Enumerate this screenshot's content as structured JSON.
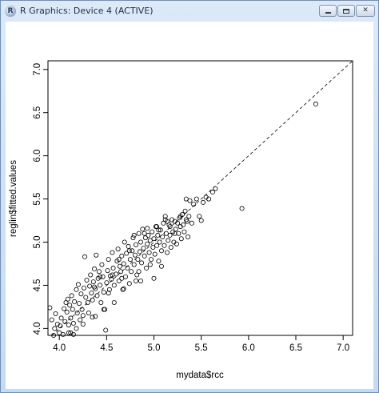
{
  "window": {
    "title": "R Graphics: Device 4 (ACTIVE)",
    "app_icon_letter": "R"
  },
  "chart_data": {
    "type": "scatter",
    "title": "",
    "xlabel": "mydata$rcc",
    "ylabel": "reglin$fitted.values",
    "xlim": [
      3.88,
      7.1
    ],
    "ylim": [
      3.92,
      7.1
    ],
    "x_ticks": [
      "4.0",
      "4.5",
      "5.0",
      "5.5",
      "6.0",
      "6.5",
      "7.0"
    ],
    "y_ticks": [
      "4.0",
      "4.5",
      "5.0",
      "5.5",
      "6.0",
      "6.5",
      "7.0"
    ],
    "grid": false,
    "reference_line": {
      "type": "abline",
      "slope": 1,
      "intercept": 0,
      "style": "dashed"
    },
    "points": [
      [
        3.9,
        4.24
      ],
      [
        3.92,
        4.1
      ],
      [
        3.94,
        3.92
      ],
      [
        3.95,
        4.0
      ],
      [
        3.96,
        4.17
      ],
      [
        3.98,
        4.05
      ],
      [
        4.0,
        3.95
      ],
      [
        4.01,
        4.03
      ],
      [
        4.02,
        4.12
      ],
      [
        4.04,
        3.93
      ],
      [
        4.05,
        4.23
      ],
      [
        4.06,
        4.08
      ],
      [
        4.07,
        4.3
      ],
      [
        4.08,
        4.19
      ],
      [
        4.09,
        4.34
      ],
      [
        4.1,
        4.04
      ],
      [
        4.1,
        3.95
      ],
      [
        4.11,
        4.27
      ],
      [
        4.12,
        4.12
      ],
      [
        4.13,
        4.38
      ],
      [
        4.14,
        4.22
      ],
      [
        4.15,
        4.06
      ],
      [
        4.15,
        3.93
      ],
      [
        4.16,
        4.31
      ],
      [
        4.18,
        4.45
      ],
      [
        4.19,
        4.18
      ],
      [
        4.2,
        4.51
      ],
      [
        4.21,
        4.29
      ],
      [
        4.22,
        4.1
      ],
      [
        4.23,
        4.4
      ],
      [
        4.24,
        4.22
      ],
      [
        4.25,
        4.15
      ],
      [
        4.26,
        4.47
      ],
      [
        4.27,
        4.83
      ],
      [
        4.28,
        4.36
      ],
      [
        4.29,
        4.56
      ],
      [
        4.3,
        4.3
      ],
      [
        4.31,
        4.18
      ],
      [
        4.32,
        4.49
      ],
      [
        4.33,
        4.62
      ],
      [
        4.34,
        4.41
      ],
      [
        4.35,
        4.33
      ],
      [
        4.36,
        4.54
      ],
      [
        4.37,
        4.69
      ],
      [
        4.38,
        4.46
      ],
      [
        4.38,
        4.14
      ],
      [
        4.39,
        4.85
      ],
      [
        4.4,
        4.38
      ],
      [
        4.41,
        4.58
      ],
      [
        4.42,
        4.66
      ],
      [
        4.43,
        4.5
      ],
      [
        4.44,
        4.3
      ],
      [
        4.45,
        4.74
      ],
      [
        4.46,
        4.6
      ],
      [
        4.47,
        4.42
      ],
      [
        4.48,
        4.22
      ],
      [
        4.49,
        3.98
      ],
      [
        4.5,
        4.53
      ],
      [
        4.51,
        4.67
      ],
      [
        4.52,
        4.8
      ],
      [
        4.53,
        4.45
      ],
      [
        4.54,
        4.61
      ],
      [
        4.55,
        4.57
      ],
      [
        4.56,
        4.88
      ],
      [
        4.57,
        4.7
      ],
      [
        4.58,
        4.5
      ],
      [
        4.6,
        4.63
      ],
      [
        4.61,
        4.78
      ],
      [
        4.62,
        4.92
      ],
      [
        4.63,
        4.55
      ],
      [
        4.64,
        4.72
      ],
      [
        4.65,
        4.66
      ],
      [
        4.66,
        4.84
      ],
      [
        4.67,
        4.45
      ],
      [
        4.68,
        4.75
      ],
      [
        4.69,
        5.0
      ],
      [
        4.7,
        4.6
      ],
      [
        4.71,
        4.87
      ],
      [
        4.72,
        4.7
      ],
      [
        4.73,
        4.95
      ],
      [
        4.74,
        4.52
      ],
      [
        4.75,
        4.8
      ],
      [
        4.76,
        4.66
      ],
      [
        4.77,
        4.9
      ],
      [
        4.78,
        5.05
      ],
      [
        4.79,
        4.74
      ],
      [
        4.8,
        4.85
      ],
      [
        4.81,
        4.97
      ],
      [
        4.82,
        4.62
      ],
      [
        4.83,
        4.8
      ],
      [
        4.84,
        5.1
      ],
      [
        4.85,
        4.89
      ],
      [
        4.86,
        4.55
      ],
      [
        4.86,
        5.0
      ],
      [
        4.87,
        4.76
      ],
      [
        4.88,
        5.15
      ],
      [
        4.89,
        4.93
      ],
      [
        4.9,
        4.84
      ],
      [
        4.91,
        5.05
      ],
      [
        4.92,
        4.7
      ],
      [
        4.93,
        4.98
      ],
      [
        4.94,
        5.08
      ],
      [
        4.95,
        4.88
      ],
      [
        4.96,
        5.02
      ],
      [
        4.97,
        4.8
      ],
      [
        4.98,
        5.12
      ],
      [
        4.99,
        4.94
      ],
      [
        5.0,
        4.58
      ],
      [
        5.0,
        5.04
      ],
      [
        5.01,
        4.86
      ],
      [
        5.02,
        5.18
      ],
      [
        5.03,
        4.96
      ],
      [
        5.04,
        5.08
      ],
      [
        5.05,
        4.78
      ],
      [
        5.06,
        5.0
      ],
      [
        5.07,
        5.14
      ],
      [
        5.08,
        4.9
      ],
      [
        5.09,
        5.06
      ],
      [
        5.1,
        5.22
      ],
      [
        5.11,
        4.96
      ],
      [
        5.12,
        5.3
      ],
      [
        5.13,
        5.1
      ],
      [
        5.14,
        4.88
      ],
      [
        5.15,
        5.02
      ],
      [
        5.16,
        5.2
      ],
      [
        5.17,
        5.08
      ],
      [
        5.18,
        4.94
      ],
      [
        5.19,
        5.26
      ],
      [
        5.2,
        5.12
      ],
      [
        5.21,
        5.0
      ],
      [
        5.22,
        5.24
      ],
      [
        5.23,
        5.15
      ],
      [
        5.24,
        4.98
      ],
      [
        5.25,
        5.22
      ],
      [
        5.26,
        5.1
      ],
      [
        5.27,
        5.28
      ],
      [
        5.28,
        5.18
      ],
      [
        5.29,
        5.04
      ],
      [
        5.3,
        5.32
      ],
      [
        5.31,
        5.2
      ],
      [
        5.32,
        5.12
      ],
      [
        5.33,
        5.36
      ],
      [
        5.34,
        5.5
      ],
      [
        5.35,
        5.24
      ],
      [
        5.36,
        5.06
      ],
      [
        5.37,
        5.3
      ],
      [
        5.38,
        5.48
      ],
      [
        5.4,
        5.22
      ],
      [
        5.42,
        5.44
      ],
      [
        5.45,
        5.5
      ],
      [
        5.48,
        5.3
      ],
      [
        5.5,
        5.25
      ],
      [
        5.52,
        5.46
      ],
      [
        5.55,
        5.52
      ],
      [
        5.58,
        5.5
      ],
      [
        5.62,
        5.58
      ],
      [
        5.65,
        5.62
      ],
      [
        5.93,
        5.39
      ],
      [
        6.71,
        6.6
      ],
      [
        4.43,
        4.6
      ],
      [
        4.56,
        4.62
      ],
      [
        4.66,
        4.58
      ],
      [
        4.74,
        4.9
      ],
      [
        4.84,
        4.66
      ],
      [
        4.9,
        5.1
      ],
      [
        5.03,
        5.18
      ],
      [
        5.14,
        5.24
      ],
      [
        5.17,
        5.18
      ],
      [
        5.22,
        5.1
      ],
      [
        5.08,
        4.72
      ],
      [
        4.96,
        4.74
      ],
      [
        4.81,
        4.55
      ],
      [
        4.68,
        4.46
      ],
      [
        4.58,
        4.3
      ],
      [
        4.47,
        4.22
      ],
      [
        4.35,
        4.13
      ],
      [
        4.25,
        4.05
      ],
      [
        4.18,
        4.0
      ],
      [
        4.12,
        3.95
      ],
      [
        4.37,
        4.48
      ],
      [
        4.52,
        4.41
      ],
      [
        4.63,
        4.8
      ],
      [
        4.79,
        5.08
      ],
      [
        4.93,
        5.16
      ],
      [
        5.05,
        5.14
      ],
      [
        5.12,
        5.26
      ],
      [
        5.28,
        5.3
      ],
      [
        5.34,
        5.26
      ]
    ]
  }
}
